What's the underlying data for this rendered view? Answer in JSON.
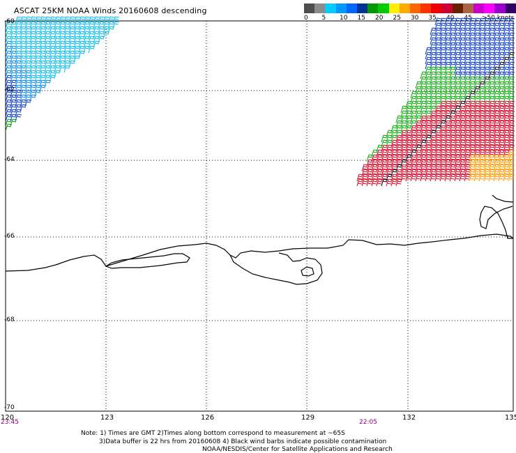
{
  "title": "ASCAT 25KM NOAA Winds 20160608 descending",
  "legend": {
    "colors": [
      "#4d4d4d",
      "#8c8c8c",
      "#00ccff",
      "#0099ff",
      "#0066ff",
      "#003399",
      "#009900",
      "#00cc00",
      "#ffee00",
      "#ffaa00",
      "#ff6600",
      "#ff3300",
      "#ee0000",
      "#cc0033",
      "#662200",
      "#aa6644",
      "#cc00cc",
      "#ff00ff",
      "#9900cc",
      "#330066"
    ],
    "labels": [
      "0",
      "5",
      "10",
      "15",
      "20",
      "25",
      "30",
      "35",
      "40",
      "45",
      ">50 knots"
    ]
  },
  "axes": {
    "lat_labels": [
      "-60",
      "-62",
      "-64",
      "-66",
      "-68",
      "-70"
    ],
    "lon_labels": [
      "120",
      "123",
      "126",
      "129",
      "132",
      "135"
    ]
  },
  "times": {
    "left": "23:45",
    "middle": "22:05"
  },
  "notes": [
    "Note: 1) Times are GMT 2)Times along bottom correspond to measurement at ~65S",
    "3)Data buffer is 22 hrs from 20160608 4) Black wind barbs indicate possible contamination",
    "NOAA/NESDIS/Center for Satellite Applications and Research"
  ]
}
